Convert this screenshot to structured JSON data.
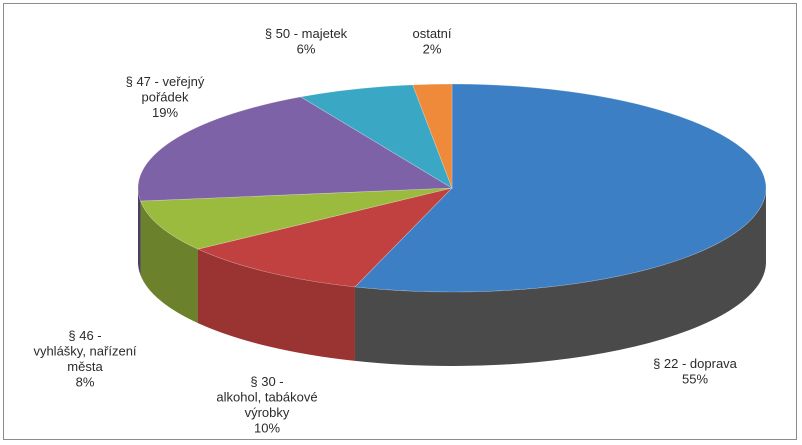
{
  "chart_data": {
    "type": "pie",
    "style": "3d",
    "title": "",
    "legend": "none",
    "slices": [
      {
        "name": "§ 22 - dopravа",
        "label_lines": [
          "§ 22 - doprava",
          "55%"
        ],
        "value": 55,
        "color": "#3d7fc4"
      },
      {
        "name": "§ 30 - alkohol, tabákové výrobky",
        "label_lines": [
          "§ 30 -",
          "alkohol, tabákové",
          "výrobky",
          "10%"
        ],
        "value": 10,
        "color": "#c0413f"
      },
      {
        "name": "§ 46 - vyhlášky, nařízení města",
        "label_lines": [
          "§ 46 -",
          "vyhlášky, nařízení",
          "města",
          "8%"
        ],
        "value": 8,
        "color": "#9bbb3f"
      },
      {
        "name": "§ 47 - veřejný pořádek",
        "label_lines": [
          "§ 47 - veřejný",
          "pořádek",
          "19%"
        ],
        "value": 19,
        "color": "#7d62a8"
      },
      {
        "name": "§ 50 - majetek",
        "label_lines": [
          "§ 50 - majetek",
          "6%"
        ],
        "value": 6,
        "color": "#3aa8c4"
      },
      {
        "name": "ostatní",
        "label_lines": [
          "ostatní",
          "2%"
        ],
        "value": 2,
        "color": "#ef8a3a"
      }
    ]
  }
}
